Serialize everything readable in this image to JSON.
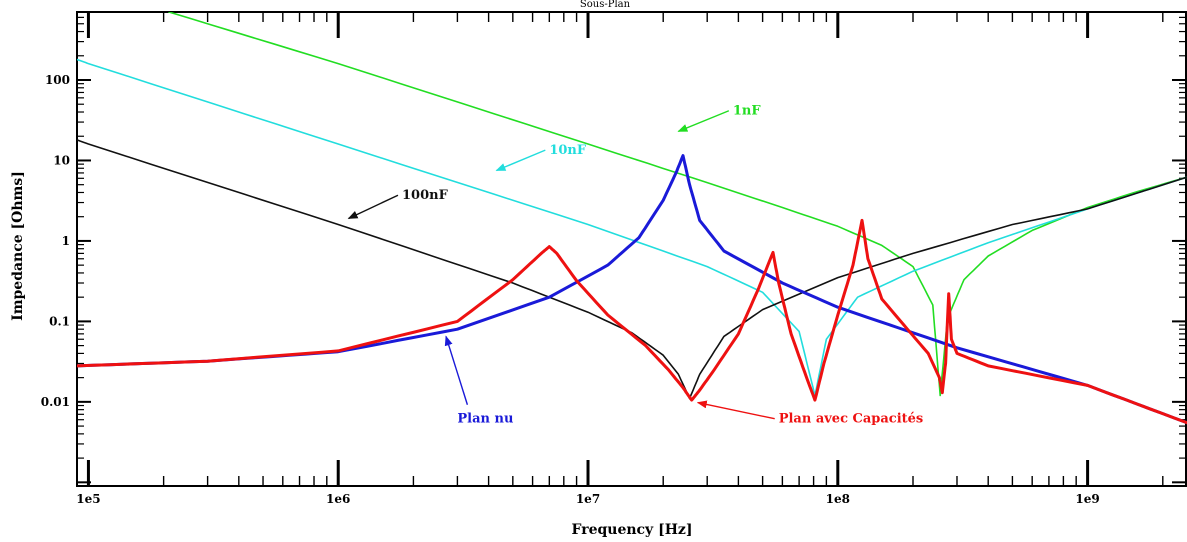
{
  "chart_data": {
    "type": "line",
    "title": "Sous-Plan",
    "xlabel": "Frequency [Hz]",
    "ylabel": "Impedance [Ohms]",
    "xscale": "log",
    "yscale": "log",
    "xlim": [
      90000,
      2500000000
    ],
    "ylim": [
      0.0009,
      700
    ],
    "grid": false,
    "x_ticks": [
      {
        "value": 100000,
        "label": "1e5"
      },
      {
        "value": 1000000,
        "label": "1e6"
      },
      {
        "value": 10000000,
        "label": "1e7"
      },
      {
        "value": 100000000,
        "label": "1e8"
      },
      {
        "value": 1000000000,
        "label": "1e9"
      }
    ],
    "y_ticks": [
      {
        "value": 100,
        "label": "100"
      },
      {
        "value": 10,
        "label": "10"
      },
      {
        "value": 1,
        "label": "1"
      },
      {
        "value": 0.1,
        "label": "0.1"
      },
      {
        "value": 0.01,
        "label": "0.01"
      }
    ],
    "series": [
      {
        "name": "1nF",
        "color": "#22dd22",
        "width": 1.6,
        "x": [
          210000,
          1000000,
          10000000,
          30000000,
          60000000,
          100000000,
          150000000,
          200000000,
          240000000,
          257000000,
          275000000,
          320000000,
          400000000,
          600000000,
          1000000000,
          1500000000,
          2500000000
        ],
        "y": [
          700,
          160,
          16,
          5.3,
          2.6,
          1.52,
          0.88,
          0.48,
          0.16,
          0.012,
          0.11,
          0.33,
          0.65,
          1.35,
          2.6,
          3.9,
          6.2
        ]
      },
      {
        "name": "10nF",
        "color": "#22dddd",
        "width": 1.6,
        "x": [
          90000,
          100000,
          1000000,
          10000000,
          30000000,
          50000000,
          70000000,
          81000000,
          90000000,
          120000000,
          200000000,
          400000000,
          1000000000,
          2500000000
        ],
        "y": [
          180,
          160,
          16,
          1.6,
          0.48,
          0.23,
          0.075,
          0.012,
          0.06,
          0.2,
          0.42,
          0.95,
          2.5,
          6.2
        ]
      },
      {
        "name": "100nF",
        "color": "#111111",
        "width": 1.6,
        "x": [
          90000,
          100000,
          1000000,
          5000000,
          10000000,
          15000000,
          20000000,
          23000000,
          25500000,
          28000000,
          35000000,
          50000000,
          100000000,
          200000000,
          500000000,
          1000000000,
          2500000000
        ],
        "y": [
          18,
          16,
          1.6,
          0.3,
          0.13,
          0.072,
          0.038,
          0.022,
          0.011,
          0.022,
          0.065,
          0.14,
          0.35,
          0.7,
          1.6,
          2.5,
          6.2
        ]
      },
      {
        "name": "Plan nu",
        "color": "#1a1ad8",
        "width": 3,
        "x": [
          90000,
          300000,
          1000000,
          3000000,
          7000000,
          12000000,
          16000000,
          20000000,
          22500000,
          24000000,
          25500000,
          28000000,
          35000000,
          60000000,
          100000000,
          300000000,
          1000000000,
          2500000000
        ],
        "y": [
          0.028,
          0.032,
          0.042,
          0.08,
          0.2,
          0.5,
          1.1,
          3.2,
          7,
          11.5,
          5,
          1.8,
          0.75,
          0.3,
          0.15,
          0.047,
          0.016,
          0.0055
        ]
      },
      {
        "name": "Plan avec Capacités",
        "color": "#ee1111",
        "width": 3,
        "x": [
          90000,
          300000,
          1000000,
          3000000,
          5000000,
          6500000,
          7000000,
          7500000,
          9000000,
          12000000,
          17000000,
          21000000,
          24000000,
          26000000,
          28000000,
          32000000,
          40000000,
          48000000,
          55000000,
          58000000,
          65000000,
          75000000,
          81000000,
          88000000,
          100000000,
          115000000,
          125000000,
          132000000,
          150000000,
          190000000,
          230000000,
          255000000,
          262000000,
          270000000,
          278000000,
          285000000,
          300000000,
          400000000,
          1000000000,
          2500000000
        ],
        "y": [
          0.028,
          0.032,
          0.043,
          0.1,
          0.33,
          0.7,
          0.85,
          0.7,
          0.32,
          0.12,
          0.05,
          0.025,
          0.015,
          0.0105,
          0.014,
          0.025,
          0.07,
          0.25,
          0.72,
          0.3,
          0.07,
          0.02,
          0.0105,
          0.03,
          0.12,
          0.5,
          1.8,
          0.6,
          0.19,
          0.08,
          0.04,
          0.02,
          0.013,
          0.03,
          0.22,
          0.06,
          0.04,
          0.028,
          0.016,
          0.0055
        ]
      }
    ],
    "annotations": [
      {
        "text": "1nF",
        "color": "#22dd22",
        "x": 38000000,
        "y": 37,
        "ax": 23000000,
        "ay": 23
      },
      {
        "text": "10nF",
        "color": "#22dddd",
        "x": 7000000,
        "y": 12,
        "ax": 4300000,
        "ay": 7.5
      },
      {
        "text": "100nF",
        "color": "#111111",
        "x": 1800000,
        "y": 3.3,
        "ax": 1100000,
        "ay": 1.9
      },
      {
        "text": "Plan nu",
        "color": "#1a1ad8",
        "x": 3000000,
        "y": 0.0055,
        "ax": 2700000,
        "ay": 0.065
      },
      {
        "text": "Plan avec Capacités",
        "color": "#ee1111",
        "x": 58000000,
        "y": 0.0055,
        "ax": 27500000,
        "ay": 0.0098
      }
    ]
  }
}
